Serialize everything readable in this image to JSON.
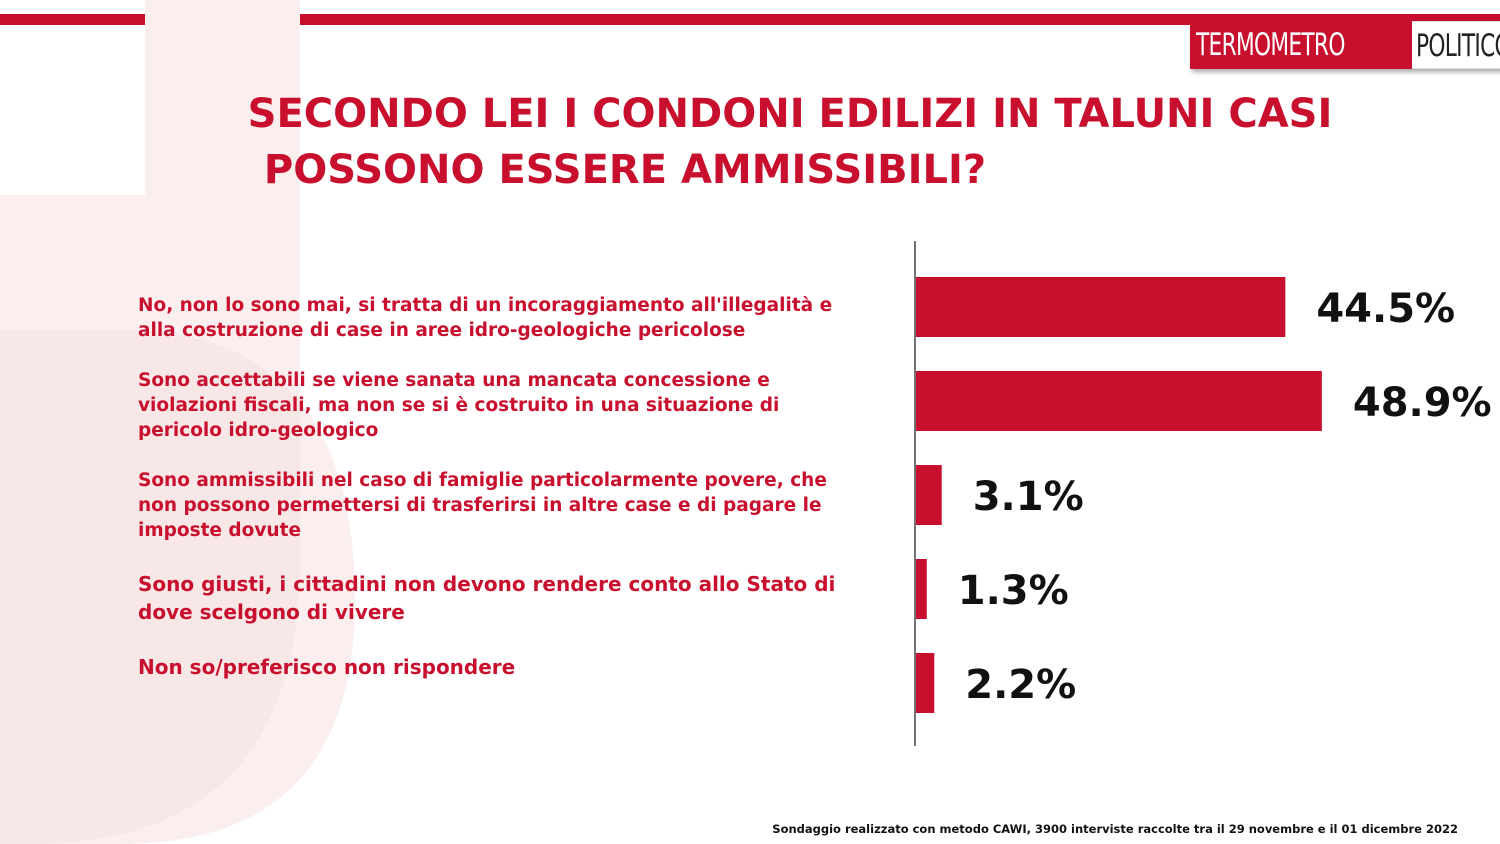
{
  "logo": {
    "part1": "TERMOMETRO",
    "part2": "POLITICO"
  },
  "title": {
    "line1": "SECONDO LEI I CONDONI EDILIZI IN TALUNI CASI",
    "line2": "POSSONO ESSERE AMMISSIBILI?"
  },
  "colors": {
    "accent": "#c8102e",
    "bar": "#c8102e",
    "text": "#111111"
  },
  "chart_data": {
    "type": "bar",
    "orientation": "horizontal",
    "categories": [
      [
        "No, non lo sono mai, si tratta di un incoraggiamento all'illegalità  e",
        "alla costruzione di case in aree idro-geologiche pericolose"
      ],
      [
        "Sono accettabili se viene sanata una mancata concessione e",
        "violazioni fiscali, ma non se si è costruito in una situazione di",
        "pericolo idro-geologico"
      ],
      [
        "Sono ammissibili nel caso di famiglie particolarmente povere, che",
        "non possono permettersi di trasferirsi in altre case e di pagare le",
        "imposte dovute"
      ],
      [
        "Sono giusti, i cittadini non devono rendere conto allo Stato di",
        "dove scelgono di vivere"
      ],
      [
        "Non so/preferisco non rispondere"
      ]
    ],
    "values": [
      44.5,
      48.9,
      3.1,
      1.3,
      2.2
    ],
    "value_labels": [
      "44.5%",
      "48.9%",
      "3.1%",
      "1.3%",
      "2.2%"
    ],
    "unit": "%",
    "grid": false,
    "legend": "none"
  },
  "footnote": "Sondaggio realizzato con metodo CAWI, 3900 interviste raccolte tra il 29 novembre e il 01 dicembre 2022"
}
